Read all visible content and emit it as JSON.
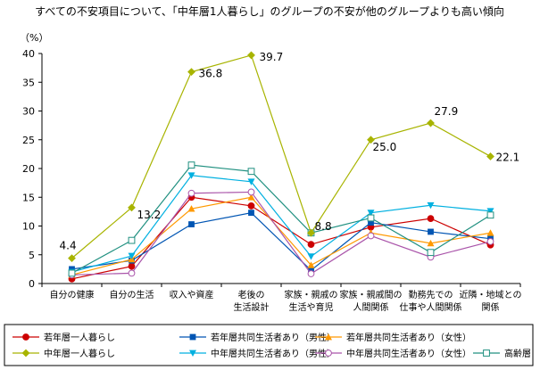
{
  "chart_data": {
    "type": "line",
    "title": "すべての不安項目について、「中年層1人暮らし」のグループの不安が他のグループよりも高い傾向",
    "ylabel": "（%）",
    "ylim": [
      0,
      40
    ],
    "yticks": [
      0,
      5,
      10,
      15,
      20,
      25,
      30,
      35,
      40
    ],
    "categories": [
      [
        "自分の健康"
      ],
      [
        "自分の生活"
      ],
      [
        "収入や資産"
      ],
      [
        "老後の",
        "生活設計"
      ],
      [
        "家族・親戚の",
        "生活や育児"
      ],
      [
        "家族・親戚間の",
        "人間関係"
      ],
      [
        "勤務先での",
        "仕事や人間関係"
      ],
      [
        "近隣・地域との",
        "関係"
      ]
    ],
    "series": [
      {
        "name": "若年層一人暮らし",
        "color": "#cc0000",
        "marker": "circle-filled",
        "values": [
          0.8,
          3.0,
          15.0,
          13.5,
          6.8,
          9.8,
          11.3,
          6.7
        ]
      },
      {
        "name": "若年層共同生活者あり（男性）",
        "color": "#0055b3",
        "marker": "square-filled",
        "values": [
          2.5,
          4.0,
          10.3,
          12.3,
          2.3,
          10.6,
          9.0,
          7.8
        ]
      },
      {
        "name": "若年層共同生活者あり（女性）",
        "color": "#ff9900",
        "marker": "triangle-up-filled",
        "values": [
          1.5,
          4.2,
          13.0,
          15.0,
          3.2,
          8.8,
          7.0,
          8.8
        ]
      },
      {
        "name": "中年層一人暮らし",
        "color": "#a8b400",
        "marker": "diamond-filled",
        "values": [
          4.4,
          13.2,
          36.8,
          39.7,
          8.8,
          25.0,
          27.9,
          22.1
        ],
        "labels": [
          "4.4",
          "13.2",
          "36.8",
          "39.7",
          "8.8",
          "25.0",
          "27.9",
          "22.1"
        ]
      },
      {
        "name": "中年層共同生活者あり（男性）",
        "color": "#00b0e0",
        "marker": "triangle-down-filled",
        "values": [
          2.0,
          4.8,
          18.8,
          17.7,
          4.7,
          12.3,
          13.6,
          12.6
        ]
      },
      {
        "name": "中年層共同生活者あり（女性）",
        "color": "#aa55aa",
        "marker": "circle-open",
        "values": [
          1.5,
          1.8,
          15.7,
          15.9,
          1.7,
          8.3,
          4.6,
          7.3
        ]
      },
      {
        "name": "高齢層",
        "color": "#209080",
        "marker": "square-open",
        "values": [
          1.8,
          7.5,
          20.6,
          19.5,
          8.8,
          11.4,
          5.4,
          11.9
        ]
      }
    ],
    "legend_position": "bottom",
    "grid": false
  }
}
